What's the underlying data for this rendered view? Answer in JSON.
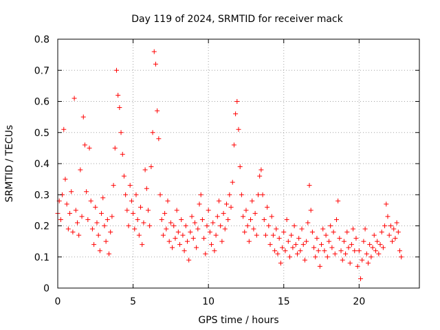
{
  "chart_data": {
    "type": "scatter",
    "title": "Day 119 of 2024, SRMTID for receiver mack",
    "xlabel": "GPS time / hours",
    "ylabel": "SRMTID / TECUs",
    "xlim": [
      0,
      24
    ],
    "ylim": [
      0,
      0.8
    ],
    "x_ticks": [
      0,
      5,
      10,
      15,
      20
    ],
    "y_ticks": [
      0,
      0.1,
      0.2,
      0.3,
      0.4,
      0.5,
      0.6,
      0.7,
      0.8
    ],
    "x_tick_labels": [
      "0",
      "5",
      "10",
      "15",
      "20"
    ],
    "y_tick_labels": [
      "0",
      "0.1",
      "0.2",
      "0.3",
      "0.4",
      "0.5",
      "0.6",
      "0.7",
      "0.8"
    ],
    "grid": true,
    "marker": "+",
    "marker_color": "#ff0000",
    "series": [
      {
        "name": "SRMTID",
        "points": [
          [
            0.0,
            0.24
          ],
          [
            0.1,
            0.28
          ],
          [
            0.2,
            0.22
          ],
          [
            0.3,
            0.3
          ],
          [
            0.4,
            0.51
          ],
          [
            0.5,
            0.35
          ],
          [
            0.6,
            0.27
          ],
          [
            0.7,
            0.19
          ],
          [
            0.8,
            0.24
          ],
          [
            0.9,
            0.31
          ],
          [
            1.0,
            0.18
          ],
          [
            1.1,
            0.61
          ],
          [
            1.2,
            0.25
          ],
          [
            1.3,
            0.21
          ],
          [
            1.4,
            0.17
          ],
          [
            1.5,
            0.38
          ],
          [
            1.6,
            0.23
          ],
          [
            1.7,
            0.55
          ],
          [
            1.8,
            0.46
          ],
          [
            1.9,
            0.31
          ],
          [
            2.0,
            0.22
          ],
          [
            2.1,
            0.45
          ],
          [
            2.2,
            0.28
          ],
          [
            2.3,
            0.19
          ],
          [
            2.4,
            0.14
          ],
          [
            2.5,
            0.26
          ],
          [
            2.6,
            0.21
          ],
          [
            2.7,
            0.17
          ],
          [
            2.8,
            0.12
          ],
          [
            2.9,
            0.24
          ],
          [
            3.0,
            0.29
          ],
          [
            3.1,
            0.2
          ],
          [
            3.2,
            0.15
          ],
          [
            3.3,
            0.22
          ],
          [
            3.4,
            0.11
          ],
          [
            3.5,
            0.18
          ],
          [
            3.6,
            0.23
          ],
          [
            3.7,
            0.33
          ],
          [
            3.8,
            0.45
          ],
          [
            3.9,
            0.7
          ],
          [
            4.0,
            0.62
          ],
          [
            4.1,
            0.58
          ],
          [
            4.2,
            0.5
          ],
          [
            4.3,
            0.43
          ],
          [
            4.4,
            0.36
          ],
          [
            4.5,
            0.3
          ],
          [
            4.6,
            0.25
          ],
          [
            4.7,
            0.2
          ],
          [
            4.8,
            0.33
          ],
          [
            4.9,
            0.28
          ],
          [
            5.0,
            0.24
          ],
          [
            5.1,
            0.19
          ],
          [
            5.2,
            0.3
          ],
          [
            5.3,
            0.22
          ],
          [
            5.4,
            0.17
          ],
          [
            5.5,
            0.26
          ],
          [
            5.6,
            0.14
          ],
          [
            5.7,
            0.21
          ],
          [
            5.8,
            0.38
          ],
          [
            5.9,
            0.32
          ],
          [
            6.0,
            0.25
          ],
          [
            6.1,
            0.2
          ],
          [
            6.2,
            0.39
          ],
          [
            6.3,
            0.5
          ],
          [
            6.4,
            0.76
          ],
          [
            6.5,
            0.72
          ],
          [
            6.6,
            0.57
          ],
          [
            6.7,
            0.48
          ],
          [
            6.8,
            0.3
          ],
          [
            6.9,
            0.22
          ],
          [
            7.0,
            0.17
          ],
          [
            7.1,
            0.24
          ],
          [
            7.2,
            0.19
          ],
          [
            7.3,
            0.28
          ],
          [
            7.4,
            0.15
          ],
          [
            7.5,
            0.21
          ],
          [
            7.6,
            0.13
          ],
          [
            7.7,
            0.2
          ],
          [
            7.8,
            0.16
          ],
          [
            7.9,
            0.25
          ],
          [
            8.0,
            0.18
          ],
          [
            8.1,
            0.14
          ],
          [
            8.2,
            0.22
          ],
          [
            8.3,
            0.17
          ],
          [
            8.4,
            0.12
          ],
          [
            8.5,
            0.2
          ],
          [
            8.6,
            0.15
          ],
          [
            8.7,
            0.09
          ],
          [
            8.8,
            0.18
          ],
          [
            8.9,
            0.23
          ],
          [
            9.0,
            0.16
          ],
          [
            9.1,
            0.21
          ],
          [
            9.2,
            0.13
          ],
          [
            9.3,
            0.19
          ],
          [
            9.4,
            0.27
          ],
          [
            9.5,
            0.3
          ],
          [
            9.6,
            0.22
          ],
          [
            9.7,
            0.16
          ],
          [
            9.8,
            0.11
          ],
          [
            9.9,
            0.2
          ],
          [
            10.0,
            0.25
          ],
          [
            10.1,
            0.18
          ],
          [
            10.2,
            0.14
          ],
          [
            10.3,
            0.21
          ],
          [
            10.4,
            0.12
          ],
          [
            10.5,
            0.17
          ],
          [
            10.6,
            0.23
          ],
          [
            10.7,
            0.28
          ],
          [
            10.8,
            0.2
          ],
          [
            10.9,
            0.15
          ],
          [
            11.0,
            0.24
          ],
          [
            11.1,
            0.19
          ],
          [
            11.2,
            0.27
          ],
          [
            11.3,
            0.22
          ],
          [
            11.4,
            0.3
          ],
          [
            11.5,
            0.26
          ],
          [
            11.6,
            0.34
          ],
          [
            11.7,
            0.46
          ],
          [
            11.8,
            0.56
          ],
          [
            11.9,
            0.6
          ],
          [
            12.0,
            0.51
          ],
          [
            12.1,
            0.39
          ],
          [
            12.2,
            0.3
          ],
          [
            12.3,
            0.23
          ],
          [
            12.4,
            0.18
          ],
          [
            12.5,
            0.25
          ],
          [
            12.6,
            0.2
          ],
          [
            12.7,
            0.15
          ],
          [
            12.8,
            0.22
          ],
          [
            12.9,
            0.28
          ],
          [
            13.0,
            0.19
          ],
          [
            13.1,
            0.24
          ],
          [
            13.2,
            0.17
          ],
          [
            13.3,
            0.3
          ],
          [
            13.4,
            0.36
          ],
          [
            13.5,
            0.38
          ],
          [
            13.6,
            0.3
          ],
          [
            13.7,
            0.22
          ],
          [
            13.8,
            0.17
          ],
          [
            13.9,
            0.26
          ],
          [
            14.0,
            0.2
          ],
          [
            14.1,
            0.14
          ],
          [
            14.2,
            0.23
          ],
          [
            14.3,
            0.17
          ],
          [
            14.4,
            0.12
          ],
          [
            14.5,
            0.19
          ],
          [
            14.6,
            0.11
          ],
          [
            14.7,
            0.16
          ],
          [
            14.8,
            0.08
          ],
          [
            14.9,
            0.13
          ],
          [
            15.0,
            0.18
          ],
          [
            15.1,
            0.12
          ],
          [
            15.2,
            0.22
          ],
          [
            15.3,
            0.15
          ],
          [
            15.4,
            0.1
          ],
          [
            15.5,
            0.17
          ],
          [
            15.6,
            0.13
          ],
          [
            15.7,
            0.2
          ],
          [
            15.8,
            0.14
          ],
          [
            15.9,
            0.11
          ],
          [
            16.0,
            0.16
          ],
          [
            16.1,
            0.12
          ],
          [
            16.2,
            0.19
          ],
          [
            16.3,
            0.14
          ],
          [
            16.4,
            0.09
          ],
          [
            16.5,
            0.15
          ],
          [
            16.6,
            0.21
          ],
          [
            16.7,
            0.33
          ],
          [
            16.8,
            0.25
          ],
          [
            16.9,
            0.18
          ],
          [
            17.0,
            0.13
          ],
          [
            17.1,
            0.1
          ],
          [
            17.2,
            0.16
          ],
          [
            17.3,
            0.12
          ],
          [
            17.4,
            0.07
          ],
          [
            17.5,
            0.14
          ],
          [
            17.6,
            0.19
          ],
          [
            17.7,
            0.12
          ],
          [
            17.8,
            0.17
          ],
          [
            17.9,
            0.1
          ],
          [
            18.0,
            0.15
          ],
          [
            18.1,
            0.2
          ],
          [
            18.2,
            0.13
          ],
          [
            18.3,
            0.18
          ],
          [
            18.4,
            0.11
          ],
          [
            18.5,
            0.22
          ],
          [
            18.6,
            0.28
          ],
          [
            18.7,
            0.16
          ],
          [
            18.8,
            0.12
          ],
          [
            18.9,
            0.09
          ],
          [
            19.0,
            0.15
          ],
          [
            19.1,
            0.11
          ],
          [
            19.2,
            0.18
          ],
          [
            19.3,
            0.13
          ],
          [
            19.4,
            0.08
          ],
          [
            19.5,
            0.14
          ],
          [
            19.6,
            0.19
          ],
          [
            19.7,
            0.12
          ],
          [
            19.8,
            0.16
          ],
          [
            19.9,
            0.07
          ],
          [
            20.0,
            0.12
          ],
          [
            20.1,
            0.03
          ],
          [
            20.2,
            0.09
          ],
          [
            20.3,
            0.15
          ],
          [
            20.4,
            0.19
          ],
          [
            20.5,
            0.11
          ],
          [
            20.6,
            0.08
          ],
          [
            20.7,
            0.14
          ],
          [
            20.8,
            0.1
          ],
          [
            20.9,
            0.13
          ],
          [
            21.0,
            0.17
          ],
          [
            21.1,
            0.12
          ],
          [
            21.2,
            0.15
          ],
          [
            21.3,
            0.11
          ],
          [
            21.4,
            0.14
          ],
          [
            21.5,
            0.18
          ],
          [
            21.6,
            0.13
          ],
          [
            21.7,
            0.2
          ],
          [
            21.8,
            0.27
          ],
          [
            21.9,
            0.23
          ],
          [
            22.0,
            0.17
          ],
          [
            22.1,
            0.2
          ],
          [
            22.2,
            0.15
          ],
          [
            22.3,
            0.19
          ],
          [
            22.4,
            0.16
          ],
          [
            22.5,
            0.21
          ],
          [
            22.6,
            0.18
          ],
          [
            22.7,
            0.12
          ],
          [
            22.8,
            0.1
          ]
        ]
      }
    ]
  }
}
